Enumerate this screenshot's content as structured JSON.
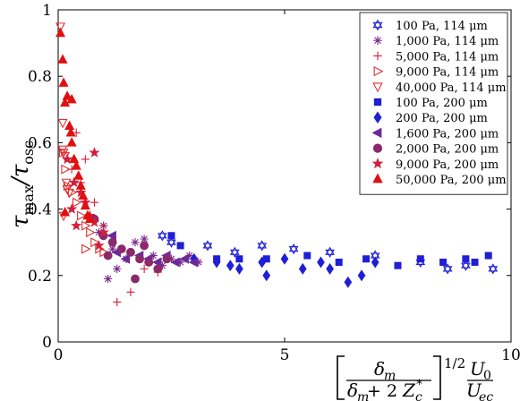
{
  "chart_data": {
    "type": "scatter",
    "xlim": [
      0,
      10
    ],
    "ylim": [
      0,
      1
    ],
    "x_ticks": [
      0,
      5,
      10
    ],
    "y_ticks": [
      0,
      0.2,
      0.4,
      0.6,
      0.8,
      1
    ],
    "x_tick_labels": [
      "0",
      "5",
      "10"
    ],
    "y_tick_labels": [
      "0",
      "0.2",
      "0.4",
      "0.6",
      "0.8",
      "1"
    ],
    "grid": false,
    "legend_position": "top-right",
    "ylabel": {
      "main": "τ",
      "sub": "max",
      "sep": "/τ",
      "sub2": "osc"
    },
    "xlabel": {
      "numerator": "δ",
      "numerator_sub": "m",
      "denominator_a": "δ",
      "denominator_a_sub": "m",
      "denominator_plus": " + 2",
      "denominator_b": "Z",
      "denominator_b_sub": "c",
      "denominator_b_sup": "*",
      "exponent": "1/2",
      "ratio_top": "U",
      "ratio_top_sub": "0",
      "ratio_bottom": "U",
      "ratio_bottom_sub": "ec"
    },
    "series": [
      {
        "name": "100 Pa, 114 μm",
        "marker": "hexagram",
        "color": "#1f1fd6",
        "filled": false,
        "points": [
          [
            2.3,
            0.32
          ],
          [
            2.5,
            0.3
          ],
          [
            3.3,
            0.29
          ],
          [
            3.9,
            0.27
          ],
          [
            4.5,
            0.29
          ],
          [
            5.2,
            0.28
          ],
          [
            6.0,
            0.27
          ],
          [
            7.0,
            0.26
          ],
          [
            8.0,
            0.24
          ],
          [
            8.6,
            0.22
          ],
          [
            9.0,
            0.23
          ],
          [
            9.6,
            0.22
          ]
        ]
      },
      {
        "name": "1,000 Pa, 114 μm",
        "marker": "asterisk",
        "color": "#7a2a8a",
        "filled": false,
        "points": [
          [
            1.1,
            0.19
          ],
          [
            1.3,
            0.22
          ],
          [
            1.5,
            0.25
          ],
          [
            1.7,
            0.3
          ],
          [
            1.9,
            0.31
          ],
          [
            2.1,
            0.26
          ],
          [
            2.3,
            0.23
          ],
          [
            2.5,
            0.25
          ],
          [
            2.7,
            0.24
          ],
          [
            2.9,
            0.26
          ],
          [
            3.1,
            0.24
          ],
          [
            1.0,
            0.35
          ],
          [
            0.9,
            0.33
          ],
          [
            1.2,
            0.28
          ]
        ]
      },
      {
        "name": "5,000 Pa, 114 μm",
        "marker": "plus",
        "color": "#d21f3c",
        "filled": false,
        "points": [
          [
            0.4,
            0.63
          ],
          [
            0.6,
            0.55
          ],
          [
            0.8,
            0.42
          ],
          [
            1.0,
            0.35
          ],
          [
            1.2,
            0.3
          ],
          [
            1.3,
            0.12
          ],
          [
            1.6,
            0.15
          ],
          [
            1.9,
            0.22
          ],
          [
            2.2,
            0.21
          ],
          [
            0.3,
            0.52
          ],
          [
            0.5,
            0.48
          ]
        ]
      },
      {
        "name": "9,000 Pa, 114 μm",
        "marker": "triangle-right",
        "color": "#e03030",
        "filled": false,
        "points": [
          [
            0.1,
            0.57
          ],
          [
            0.15,
            0.52
          ],
          [
            0.2,
            0.47
          ],
          [
            0.3,
            0.45
          ],
          [
            0.4,
            0.42
          ],
          [
            0.5,
            0.38
          ],
          [
            0.6,
            0.35
          ],
          [
            0.7,
            0.33
          ],
          [
            0.8,
            0.3
          ],
          [
            0.9,
            0.28
          ],
          [
            0.6,
            0.28
          ],
          [
            1.0,
            0.27
          ]
        ]
      },
      {
        "name": "40,000 Pa, 114 μm",
        "marker": "triangle-down",
        "color": "#e03030",
        "filled": false,
        "points": [
          [
            0.05,
            0.95
          ],
          [
            0.1,
            0.66
          ],
          [
            0.1,
            0.58
          ],
          [
            0.12,
            0.57
          ],
          [
            0.15,
            0.56
          ],
          [
            0.18,
            0.48
          ],
          [
            0.2,
            0.46
          ],
          [
            0.12,
            0.38
          ],
          [
            0.25,
            0.45
          ]
        ]
      },
      {
        "name": "100 Pa, 200 μm",
        "marker": "square",
        "color": "#1f1fd6",
        "filled": true,
        "points": [
          [
            2.5,
            0.32
          ],
          [
            2.7,
            0.29
          ],
          [
            3.5,
            0.25
          ],
          [
            4.0,
            0.25
          ],
          [
            4.6,
            0.25
          ],
          [
            5.5,
            0.26
          ],
          [
            6.2,
            0.24
          ],
          [
            6.8,
            0.25
          ],
          [
            7.5,
            0.23
          ],
          [
            8.0,
            0.25
          ],
          [
            8.5,
            0.24
          ],
          [
            9.2,
            0.24
          ],
          [
            9.5,
            0.26
          ],
          [
            9.0,
            0.25
          ]
        ]
      },
      {
        "name": "200 Pa, 200 μm",
        "marker": "diamond",
        "color": "#1f1fd6",
        "filled": true,
        "points": [
          [
            3.0,
            0.25
          ],
          [
            3.5,
            0.24
          ],
          [
            4.0,
            0.22
          ],
          [
            4.5,
            0.24
          ],
          [
            4.6,
            0.2
          ],
          [
            5.0,
            0.25
          ],
          [
            5.4,
            0.22
          ],
          [
            6.0,
            0.22
          ],
          [
            6.4,
            0.18
          ],
          [
            6.7,
            0.2
          ],
          [
            7.0,
            0.24
          ],
          [
            3.8,
            0.23
          ],
          [
            5.8,
            0.24
          ]
        ]
      },
      {
        "name": "1,600 Pa, 200 μm",
        "marker": "triangle-left",
        "color": "#6a2a9a",
        "filled": true,
        "points": [
          [
            1.3,
            0.27
          ],
          [
            1.5,
            0.25
          ],
          [
            1.8,
            0.26
          ],
          [
            2.0,
            0.25
          ],
          [
            2.2,
            0.24
          ],
          [
            2.4,
            0.26
          ],
          [
            2.6,
            0.24
          ],
          [
            2.8,
            0.25
          ],
          [
            3.0,
            0.24
          ],
          [
            1.2,
            0.32
          ]
        ]
      },
      {
        "name": "2,000 Pa, 200 μm",
        "marker": "circle",
        "color": "#8a2a6a",
        "filled": true,
        "points": [
          [
            0.8,
            0.37
          ],
          [
            1.0,
            0.32
          ],
          [
            1.2,
            0.3
          ],
          [
            1.4,
            0.28
          ],
          [
            1.6,
            0.27
          ],
          [
            1.8,
            0.25
          ],
          [
            2.0,
            0.24
          ],
          [
            1.7,
            0.19
          ],
          [
            2.2,
            0.22
          ],
          [
            2.4,
            0.25
          ],
          [
            1.9,
            0.29
          ],
          [
            1.1,
            0.26
          ]
        ]
      },
      {
        "name": "9,000 Pa, 200 μm",
        "marker": "star",
        "color": "#d21f3c",
        "filled": true,
        "points": [
          [
            0.2,
            0.55
          ],
          [
            0.35,
            0.48
          ],
          [
            0.5,
            0.45
          ],
          [
            0.6,
            0.42
          ],
          [
            0.7,
            0.38
          ],
          [
            0.8,
            0.36
          ],
          [
            1.0,
            0.33
          ],
          [
            0.8,
            0.57
          ],
          [
            0.9,
            0.29
          ],
          [
            0.4,
            0.35
          ],
          [
            0.3,
            0.4
          ]
        ]
      },
      {
        "name": "50,000 Pa, 200 μm",
        "marker": "triangle-up",
        "color": "#e01010",
        "filled": true,
        "points": [
          [
            0.05,
            0.93
          ],
          [
            0.1,
            0.85
          ],
          [
            0.12,
            0.78
          ],
          [
            0.15,
            0.72
          ],
          [
            0.2,
            0.74
          ],
          [
            0.3,
            0.73
          ],
          [
            0.25,
            0.65
          ],
          [
            0.28,
            0.63
          ],
          [
            0.3,
            0.6
          ],
          [
            0.35,
            0.55
          ],
          [
            0.4,
            0.53
          ],
          [
            0.45,
            0.5
          ],
          [
            0.5,
            0.47
          ],
          [
            0.55,
            0.44
          ],
          [
            0.6,
            0.41
          ],
          [
            0.65,
            0.38
          ],
          [
            0.7,
            0.37
          ],
          [
            0.15,
            0.39
          ]
        ]
      }
    ]
  }
}
